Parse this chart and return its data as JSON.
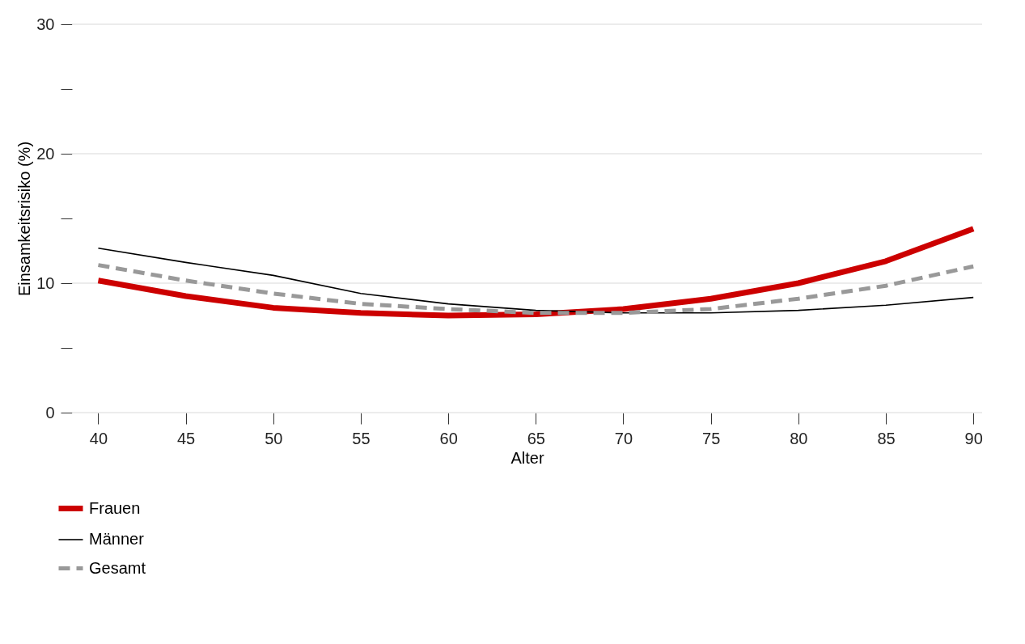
{
  "chart_data": {
    "type": "line",
    "xlabel": "Alter",
    "ylabel": "Einsamkeitsrisiko (%)",
    "x": [
      40,
      45,
      50,
      55,
      60,
      65,
      70,
      75,
      80,
      85,
      90
    ],
    "series": [
      {
        "name": "Frauen",
        "color": "#cc0000",
        "line_style": "solid",
        "values": [
          10.2,
          9.0,
          8.1,
          7.7,
          7.5,
          7.6,
          8.0,
          8.8,
          10.0,
          11.7,
          14.2
        ]
      },
      {
        "name": "Männer",
        "color": "#000000",
        "line_style": "solid",
        "values": [
          12.7,
          11.6,
          10.6,
          9.2,
          8.4,
          7.9,
          7.7,
          7.7,
          7.9,
          8.3,
          8.9
        ]
      },
      {
        "name": "Gesamt",
        "color": "#999999",
        "line_style": "dashed",
        "values": [
          11.4,
          10.2,
          9.2,
          8.4,
          8.0,
          7.7,
          7.7,
          8.0,
          8.8,
          9.8,
          11.3
        ]
      }
    ],
    "xlim": [
      38.5,
      90.5
    ],
    "xticks": [
      40,
      45,
      50,
      55,
      60,
      65,
      70,
      75,
      80,
      85,
      90
    ],
    "ylim": [
      0,
      30
    ],
    "yticks": [
      0,
      {
        "value": 5,
        "label": null
      },
      10,
      {
        "value": 15,
        "label": null
      },
      20,
      {
        "value": 25,
        "label": null
      },
      30
    ],
    "grid": "y",
    "legend": "bottom left",
    "marker": "none"
  }
}
